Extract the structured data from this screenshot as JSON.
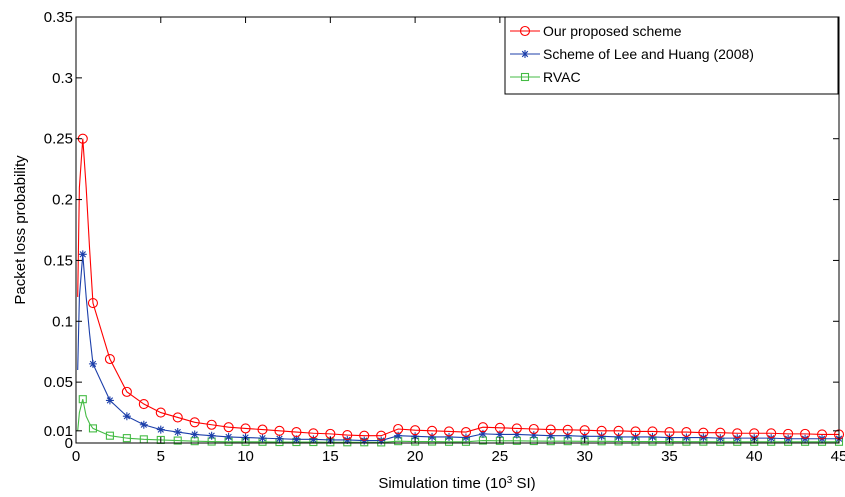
{
  "chart_data": {
    "type": "line",
    "xlabel": "Simulation time (10",
    "xlabel_sup": "3",
    "xlabel_suffix": " SI)",
    "ylabel": "Packet loss probability",
    "xlim": [
      0,
      45
    ],
    "ylim": [
      0,
      0.35
    ],
    "xticks": [
      0,
      5,
      10,
      15,
      20,
      25,
      30,
      35,
      40,
      45
    ],
    "yticks": [
      0,
      0.01,
      0.05,
      0.1,
      0.15,
      0.2,
      0.25,
      0.3,
      0.35
    ],
    "ytick_labels": [
      "0",
      "0.01",
      "0.05",
      "0.1",
      "0.15",
      "0.2",
      "0.25",
      "0.3",
      "0.35"
    ],
    "grid": false,
    "legend_position": "top-right",
    "series": [
      {
        "name": "Our proposed scheme",
        "color": "#ff0000",
        "marker": "circle",
        "x": [
          0.1,
          0.2,
          0.4,
          0.6,
          0.8,
          1,
          2,
          3,
          4,
          5,
          6,
          7,
          8,
          9,
          10,
          11,
          12,
          13,
          14,
          15,
          16,
          17,
          18,
          19,
          20,
          21,
          22,
          23,
          24,
          25,
          26,
          27,
          28,
          29,
          30,
          31,
          32,
          33,
          34,
          35,
          36,
          37,
          38,
          39,
          40,
          41,
          42,
          43,
          44,
          45
        ],
        "y": [
          0.12,
          0.21,
          0.25,
          0.21,
          0.16,
          0.115,
          0.069,
          0.042,
          0.032,
          0.025,
          0.021,
          0.017,
          0.015,
          0.013,
          0.012,
          0.011,
          0.01,
          0.009,
          0.008,
          0.0075,
          0.0065,
          0.006,
          0.006,
          0.0115,
          0.0105,
          0.01,
          0.0095,
          0.009,
          0.013,
          0.0125,
          0.012,
          0.0115,
          0.011,
          0.0108,
          0.0105,
          0.01,
          0.01,
          0.0095,
          0.0095,
          0.009,
          0.009,
          0.0085,
          0.0085,
          0.008,
          0.008,
          0.008,
          0.0075,
          0.0075,
          0.007,
          0.007
        ]
      },
      {
        "name": "Scheme of Lee and Huang (2008)",
        "color": "#1c3faa",
        "marker": "star",
        "x": [
          0.1,
          0.2,
          0.4,
          0.6,
          0.8,
          1,
          2,
          3,
          4,
          5,
          6,
          7,
          8,
          9,
          10,
          11,
          12,
          13,
          14,
          15,
          16,
          17,
          18,
          19,
          20,
          21,
          22,
          23,
          24,
          25,
          26,
          27,
          28,
          29,
          30,
          31,
          32,
          33,
          34,
          35,
          36,
          37,
          38,
          39,
          40,
          41,
          42,
          43,
          44,
          45
        ],
        "y": [
          0.06,
          0.12,
          0.155,
          0.12,
          0.09,
          0.065,
          0.035,
          0.022,
          0.015,
          0.011,
          0.009,
          0.007,
          0.006,
          0.005,
          0.0045,
          0.004,
          0.0035,
          0.003,
          0.003,
          0.0025,
          0.0025,
          0.002,
          0.002,
          0.006,
          0.0055,
          0.005,
          0.005,
          0.0045,
          0.0075,
          0.007,
          0.007,
          0.0065,
          0.006,
          0.006,
          0.0055,
          0.0055,
          0.005,
          0.005,
          0.005,
          0.0045,
          0.0045,
          0.0045,
          0.004,
          0.004,
          0.004,
          0.004,
          0.0035,
          0.0035,
          0.0035,
          0.0035
        ]
      },
      {
        "name": "RVAC",
        "color": "#44bb44",
        "marker": "square",
        "x": [
          0.1,
          0.2,
          0.4,
          0.6,
          0.8,
          1,
          2,
          3,
          4,
          5,
          6,
          7,
          8,
          9,
          10,
          11,
          12,
          13,
          14,
          15,
          16,
          17,
          18,
          19,
          20,
          21,
          22,
          23,
          24,
          25,
          26,
          27,
          28,
          29,
          30,
          31,
          32,
          33,
          34,
          35,
          36,
          37,
          38,
          39,
          40,
          41,
          42,
          43,
          44,
          45
        ],
        "y": [
          0.01,
          0.025,
          0.036,
          0.022,
          0.016,
          0.012,
          0.006,
          0.004,
          0.003,
          0.0025,
          0.002,
          0.0015,
          0.0012,
          0.001,
          0.001,
          0.001,
          0.0008,
          0.0008,
          0.0008,
          0.0006,
          0.0006,
          0.0006,
          0.0005,
          0.0015,
          0.0012,
          0.0012,
          0.001,
          0.001,
          0.002,
          0.0018,
          0.0018,
          0.0016,
          0.0015,
          0.0015,
          0.0014,
          0.0014,
          0.0013,
          0.0012,
          0.0012,
          0.0012,
          0.0011,
          0.0011,
          0.001,
          0.001,
          0.001,
          0.001,
          0.001,
          0.001,
          0.001,
          0.001
        ]
      }
    ]
  }
}
